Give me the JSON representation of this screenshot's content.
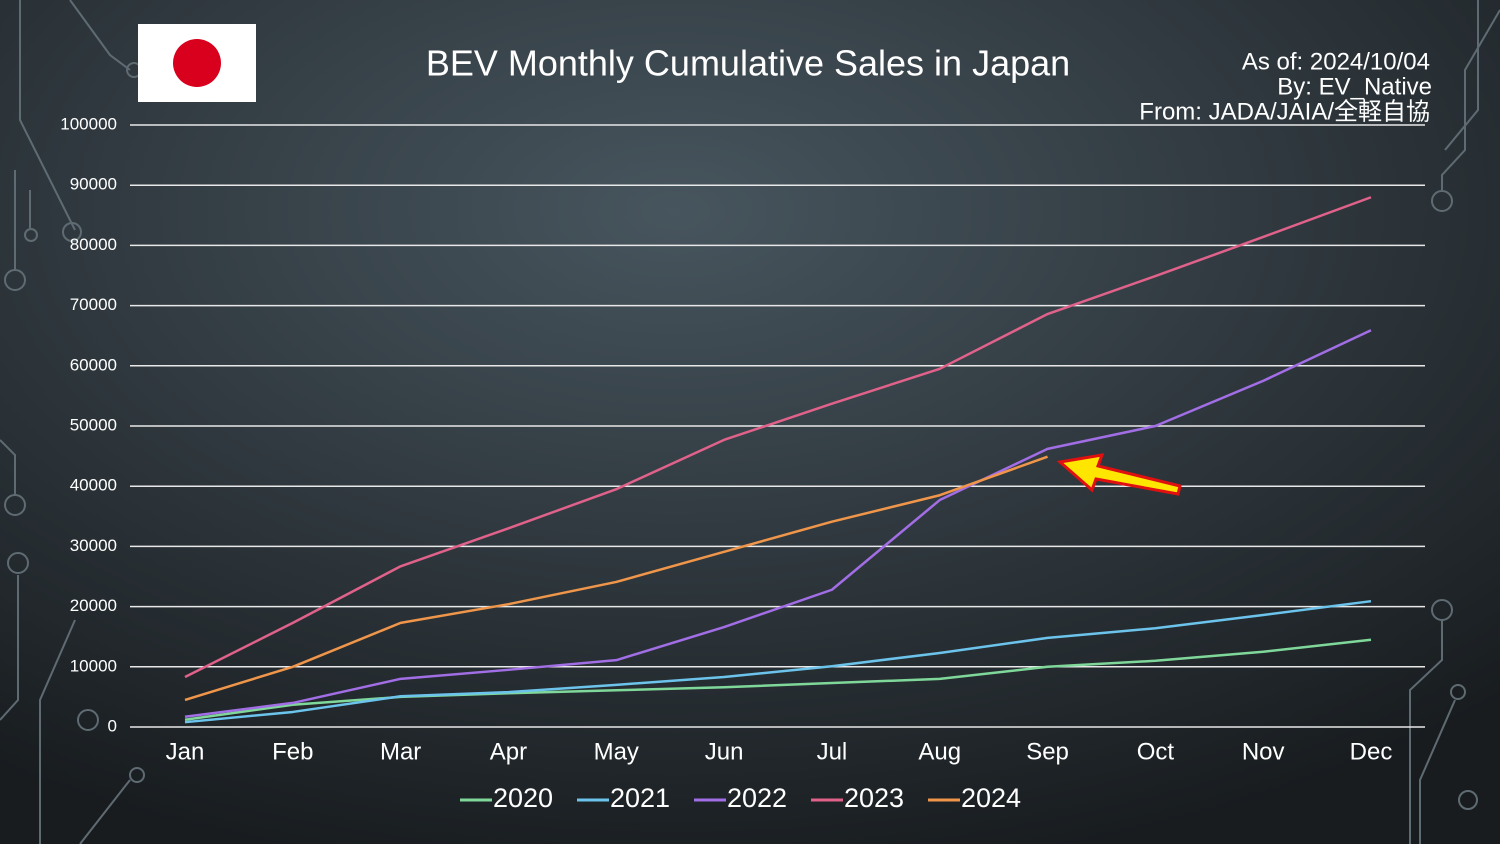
{
  "chart_data": {
    "type": "line",
    "title": "BEV Monthly Cumulative Sales in Japan",
    "annotations": [
      "As of: 2024/10/04",
      "By: EV_Native",
      "From: JADA/JAIA/全軽自協"
    ],
    "categories": [
      "Jan",
      "Feb",
      "Mar",
      "Apr",
      "May",
      "Jun",
      "Jul",
      "Aug",
      "Sep",
      "Oct",
      "Nov",
      "Dec"
    ],
    "series": [
      {
        "name": "2020",
        "color": "#7fd89a",
        "values": [
          1200,
          3700,
          5000,
          5600,
          6100,
          6600,
          7300,
          8000,
          10000,
          11000,
          12500,
          14500
        ]
      },
      {
        "name": "2021",
        "color": "#6cc4ec",
        "values": [
          800,
          2500,
          5100,
          5800,
          7000,
          8300,
          10100,
          12300,
          14800,
          16400,
          18600,
          20900
        ]
      },
      {
        "name": "2022",
        "color": "#a26ee6",
        "values": [
          1700,
          4000,
          8000,
          9500,
          11100,
          16600,
          22800,
          37700,
          46200,
          50000,
          57500,
          65900
        ]
      },
      {
        "name": "2023",
        "color": "#e0628a",
        "values": [
          8300,
          17300,
          26700,
          33000,
          39500,
          47700,
          53700,
          59500,
          68600,
          74900,
          81400,
          88000
        ]
      },
      {
        "name": "2024",
        "color": "#f0964a",
        "values": [
          4500,
          10000,
          17300,
          20400,
          24100,
          29100,
          34100,
          38500,
          44900,
          null,
          null,
          null
        ]
      }
    ],
    "ylim": [
      0,
      100000
    ],
    "yticks": [
      0,
      10000,
      20000,
      30000,
      40000,
      50000,
      60000,
      70000,
      80000,
      90000,
      100000
    ],
    "grid": true
  }
}
